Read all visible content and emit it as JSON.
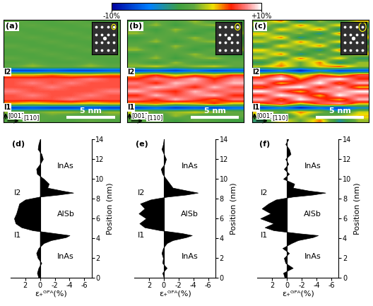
{
  "colorbar": {
    "range": [
      -10,
      10
    ],
    "ticks": [
      {
        "value": -10,
        "label": "-10%"
      },
      {
        "value": 10,
        "label": "+10%"
      }
    ]
  },
  "chart_data": [
    {
      "type": "heatmap",
      "title": "(a)",
      "xlim": [
        0,
        12
      ],
      "ylim": [
        2.5,
        15
      ],
      "tick_labels": false,
      "interfaces": [
        {
          "label": "I1",
          "position": 4.3
        },
        {
          "label": "I2",
          "position": 8.6
        }
      ],
      "directions": [
        "[001]",
        "[110]"
      ],
      "scale_bar": {
        "length": 5,
        "label": "5 nm"
      },
      "cells": [
        [
          0,
          1,
          0,
          0,
          1,
          0
        ],
        [
          0,
          0,
          1,
          0,
          0,
          1
        ],
        [
          2,
          1,
          2,
          2,
          1,
          2
        ],
        [
          -8,
          -7,
          -8,
          -8,
          -7,
          -8
        ],
        [
          4,
          3,
          4,
          4,
          3,
          4
        ],
        [
          7,
          7,
          7,
          8,
          7,
          7
        ],
        [
          7,
          8,
          7,
          7,
          8,
          7
        ],
        [
          8,
          7,
          7,
          7,
          7,
          8
        ],
        [
          7,
          7,
          8,
          7,
          7,
          7
        ],
        [
          7,
          8,
          7,
          8,
          7,
          7
        ],
        [
          7,
          7,
          7,
          7,
          8,
          7
        ],
        [
          4,
          4,
          5,
          4,
          4,
          5
        ],
        [
          -8,
          -8,
          -7,
          -8,
          -8,
          -7
        ],
        [
          1,
          2,
          1,
          1,
          2,
          1
        ],
        [
          0,
          1,
          0,
          0,
          1,
          0
        ],
        [
          1,
          0,
          0,
          1,
          0,
          0
        ],
        [
          0,
          0,
          1,
          0,
          0,
          1
        ],
        [
          0,
          1,
          0,
          0,
          1,
          0
        ],
        [
          1,
          0,
          0,
          1,
          0,
          0
        ],
        [
          0,
          0,
          1,
          0,
          0,
          1
        ],
        [
          0,
          1,
          0,
          0,
          1,
          0
        ],
        [
          1,
          0,
          0,
          1,
          0,
          0
        ],
        [
          0,
          0,
          1,
          0,
          0,
          1
        ],
        [
          0,
          1,
          0,
          0,
          1,
          0
        ],
        [
          1,
          0,
          0,
          1,
          0,
          0
        ]
      ]
    },
    {
      "type": "heatmap",
      "title": "(b)",
      "xlim": [
        0,
        12
      ],
      "ylim": [
        2.5,
        15
      ],
      "tick_labels": false,
      "interfaces": [
        {
          "label": "I1",
          "position": 4.3
        },
        {
          "label": "I2",
          "position": 8.6
        }
      ],
      "directions": [
        "[001]",
        "[110]"
      ],
      "scale_bar": {
        "length": 5,
        "label": "5 nm"
      },
      "cells": [
        [
          0,
          1,
          -1,
          1,
          0,
          -1
        ],
        [
          1,
          -1,
          2,
          0,
          -1,
          1
        ],
        [
          3,
          1,
          2,
          3,
          2,
          1
        ],
        [
          -8,
          -6,
          -8,
          -7,
          -8,
          -6
        ],
        [
          4,
          5,
          3,
          4,
          6,
          3
        ],
        [
          8,
          6,
          9,
          7,
          5,
          8
        ],
        [
          6,
          9,
          7,
          8,
          9,
          6
        ],
        [
          9,
          7,
          6,
          9,
          7,
          8
        ],
        [
          7,
          9,
          8,
          6,
          9,
          7
        ],
        [
          8,
          6,
          9,
          8,
          7,
          9
        ],
        [
          6,
          8,
          7,
          9,
          6,
          8
        ],
        [
          4,
          6,
          3,
          5,
          4,
          6
        ],
        [
          -8,
          -7,
          -8,
          -6,
          -8,
          -7
        ],
        [
          2,
          3,
          1,
          2,
          3,
          1
        ],
        [
          1,
          -1,
          2,
          0,
          -1,
          1
        ],
        [
          0,
          2,
          -1,
          1,
          2,
          0
        ],
        [
          -1,
          1,
          0,
          2,
          0,
          -1
        ],
        [
          2,
          0,
          1,
          -1,
          1,
          2
        ],
        [
          1,
          -1,
          2,
          0,
          -1,
          1
        ],
        [
          0,
          2,
          -1,
          1,
          2,
          0
        ],
        [
          -1,
          1,
          0,
          2,
          0,
          -1
        ],
        [
          2,
          0,
          1,
          -1,
          1,
          2
        ],
        [
          1,
          -1,
          2,
          0,
          -1,
          1
        ],
        [
          0,
          2,
          -1,
          1,
          2,
          0
        ],
        [
          -1,
          1,
          0,
          2,
          0,
          -1
        ]
      ]
    },
    {
      "type": "heatmap",
      "title": "(c)",
      "xlim": [
        0,
        12
      ],
      "ylim": [
        2.5,
        15
      ],
      "tick_labels": false,
      "interfaces": [
        {
          "label": "I1",
          "position": 4.3
        },
        {
          "label": "I2",
          "position": 8.6
        }
      ],
      "directions": [
        "[001]",
        "[110]"
      ],
      "scale_bar": {
        "length": 5,
        "label": "5 nm"
      },
      "cells": [
        [
          -2,
          4,
          1,
          5,
          -3,
          2
        ],
        [
          2,
          -3,
          3,
          -1,
          2,
          4
        ],
        [
          4,
          1,
          5,
          2,
          -2,
          3
        ],
        [
          -8,
          -5,
          -9,
          -6,
          -8,
          -4
        ],
        [
          5,
          8,
          3,
          7,
          9,
          4
        ],
        [
          9,
          5,
          10,
          7,
          4,
          9
        ],
        [
          6,
          10,
          8,
          4,
          10,
          7
        ],
        [
          10,
          7,
          4,
          9,
          8,
          10
        ],
        [
          5,
          9,
          10,
          6,
          9,
          4
        ],
        [
          9,
          4,
          7,
          10,
          5,
          9
        ],
        [
          7,
          10,
          5,
          8,
          10,
          6
        ],
        [
          4,
          7,
          2,
          6,
          3,
          7
        ],
        [
          -8,
          -6,
          -9,
          -5,
          -8,
          -7
        ],
        [
          3,
          5,
          1,
          4,
          6,
          2
        ],
        [
          -2,
          4,
          1,
          5,
          -3,
          2
        ],
        [
          3,
          -1,
          5,
          0,
          4,
          -2
        ],
        [
          1,
          5,
          -3,
          2,
          -1,
          4
        ],
        [
          4,
          0,
          2,
          -3,
          5,
          1
        ],
        [
          -2,
          4,
          1,
          5,
          -3,
          2
        ],
        [
          3,
          -1,
          5,
          0,
          4,
          -2
        ],
        [
          1,
          5,
          -3,
          2,
          -1,
          4
        ],
        [
          4,
          0,
          2,
          -3,
          5,
          1
        ],
        [
          -2,
          4,
          1,
          5,
          -3,
          2
        ],
        [
          3,
          -1,
          5,
          0,
          4,
          -2
        ],
        [
          1,
          5,
          -3,
          2,
          -1,
          4
        ]
      ]
    },
    {
      "type": "area",
      "title": "(d)",
      "orientation": "horizontal",
      "color": "#000000",
      "positions": [
        0,
        0.5,
        1,
        1.5,
        2,
        2.5,
        3,
        3.5,
        3.8,
        4.1,
        4.3,
        4.5,
        4.8,
        5.1,
        5.5,
        6,
        6.5,
        7,
        7.5,
        7.9,
        8.2,
        8.4,
        8.6,
        8.8,
        9.1,
        9.5,
        10,
        10.5,
        11,
        11.5,
        12,
        12.5,
        13,
        13.5,
        14
      ],
      "values": [
        0.2,
        0.4,
        0.2,
        -0.2,
        0.3,
        0.5,
        0.2,
        -0.5,
        -1.5,
        -3.5,
        -4,
        -2,
        1,
        2.5,
        3.3,
        3.5,
        3.2,
        3,
        2.8,
        2,
        0,
        -2.5,
        -4.5,
        -3,
        -1,
        -1.2,
        -0.5,
        0.4,
        0.5,
        0,
        -0.4,
        -0.2,
        0.3,
        0.2,
        0
      ],
      "xlim": [
        4,
        -7
      ],
      "xticks": [
        2,
        0,
        -2,
        -4,
        -6
      ],
      "ylim": [
        0,
        14
      ],
      "yticks": [
        0,
        2,
        4,
        6,
        8,
        10,
        12,
        14
      ],
      "xlabel": "ε₊ᴳᴾᴬ(%)",
      "ylabel": "Position (nm)",
      "layers": [
        {
          "name": "InAs",
          "from": 0,
          "to": 4.3
        },
        {
          "name": "AlSb",
          "from": 4.3,
          "to": 8.6
        },
        {
          "name": "InAs",
          "from": 8.6,
          "to": 14
        }
      ],
      "interfaces": [
        {
          "label": "I1",
          "position": 4.3
        },
        {
          "label": "I2",
          "position": 8.6
        }
      ]
    },
    {
      "type": "area",
      "title": "(e)",
      "orientation": "horizontal",
      "color": "#000000",
      "positions": [
        0,
        0.5,
        1,
        1.5,
        2,
        2.5,
        3,
        3.5,
        3.8,
        4.1,
        4.3,
        4.5,
        4.8,
        5.1,
        5.5,
        6,
        6.5,
        7,
        7.5,
        7.9,
        8.2,
        8.4,
        8.6,
        8.8,
        9.1,
        9.5,
        10,
        10.5,
        11,
        11.5,
        12,
        12.5,
        13,
        13.5,
        14
      ],
      "values": [
        0,
        0.2,
        -0.4,
        0.2,
        0.1,
        0.3,
        0.1,
        -0.4,
        -1.2,
        -3,
        -3.8,
        -2.5,
        0.5,
        2.6,
        3.3,
        2.4,
        3.4,
        2.6,
        3.2,
        1.8,
        -0.5,
        -3,
        -4.6,
        -3.2,
        -1.2,
        -0.8,
        -0.3,
        0.2,
        0.4,
        -0.1,
        -0.3,
        0,
        0.3,
        0.1,
        0
      ],
      "xlim": [
        4,
        -7
      ],
      "xticks": [
        2,
        0,
        -2,
        -4,
        -6
      ],
      "ylim": [
        0,
        14
      ],
      "yticks": [
        0,
        2,
        4,
        6,
        8,
        10,
        12,
        14
      ],
      "xlabel": "ε₊ᴳᴾᴬ(%)",
      "ylabel": "Position (nm)",
      "layers": [
        {
          "name": "InAs",
          "from": 0,
          "to": 4.3
        },
        {
          "name": "AlSb",
          "from": 4.3,
          "to": 8.6
        },
        {
          "name": "InAs",
          "from": 8.6,
          "to": 14
        }
      ],
      "interfaces": [
        {
          "label": "I1",
          "position": 4.3
        },
        {
          "label": "I2",
          "position": 8.6
        }
      ]
    },
    {
      "type": "area",
      "title": "(f)",
      "orientation": "horizontal",
      "color": "#000000",
      "positions": [
        0,
        0.5,
        1,
        1.5,
        2,
        2.5,
        3,
        3.5,
        3.8,
        4.1,
        4.3,
        4.5,
        4.8,
        5.1,
        5.5,
        6,
        6.5,
        7,
        7.5,
        7.9,
        8.2,
        8.4,
        8.6,
        8.8,
        9.1,
        9.5,
        10,
        10.5,
        11,
        11.5,
        12,
        12.5,
        13,
        13.5,
        14
      ],
      "values": [
        0.3,
        0.5,
        -0.8,
        0.2,
        0.4,
        -0.3,
        0.6,
        -0.6,
        -1.5,
        -3.5,
        -4.2,
        -1.5,
        1.8,
        3.0,
        1.8,
        3.6,
        2.2,
        3.4,
        2.5,
        1.5,
        -0.8,
        -3.5,
        -5.2,
        -3,
        -0.8,
        -1,
        0.5,
        -0.3,
        0.4,
        -0.2,
        0.2,
        -0.5,
        -0.3,
        0.2,
        -0.2
      ],
      "xlim": [
        4,
        -7
      ],
      "xticks": [
        2,
        0,
        -2,
        -4,
        -6
      ],
      "ylim": [
        0,
        14
      ],
      "yticks": [
        0,
        2,
        4,
        6,
        8,
        10,
        12,
        14
      ],
      "xlabel": "ε₊ᴳᴾᴬ(%)",
      "ylabel": "Position (nm)",
      "layers": [
        {
          "name": "InAs",
          "from": 0,
          "to": 4.3
        },
        {
          "name": "AlSb",
          "from": 4.3,
          "to": 8.6
        },
        {
          "name": "InAs",
          "from": 8.6,
          "to": 14
        }
      ],
      "interfaces": [
        {
          "label": "I1",
          "position": 4.3
        },
        {
          "label": "I2",
          "position": 8.6
        }
      ]
    }
  ]
}
